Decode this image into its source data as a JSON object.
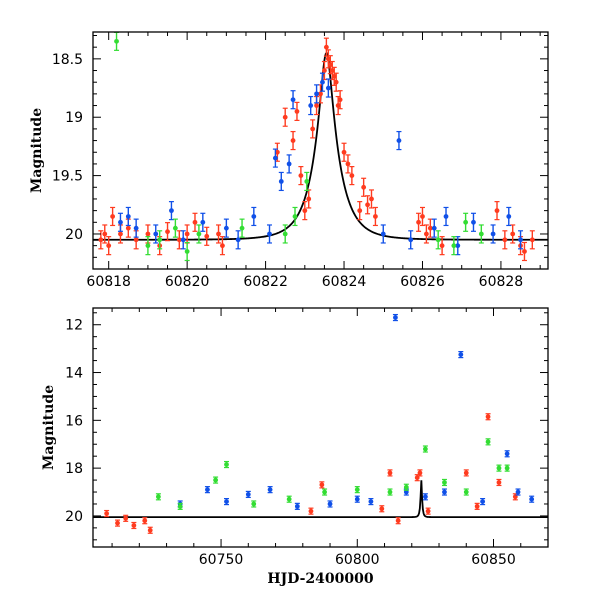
{
  "colors": {
    "red": "#ff3b1f",
    "blue": "#1050e8",
    "green": "#33dd33",
    "model": "#000000"
  },
  "chart_data": [
    {
      "type": "scatter",
      "title": "",
      "xlabel": "",
      "ylabel": "Magnitude",
      "xlim": [
        60817.6,
        60829.2
      ],
      "ylim": [
        20.3,
        18.27
      ],
      "y_inverted": true,
      "x_ticks": [
        60818,
        60820,
        60822,
        60824,
        60826,
        60828
      ],
      "x_tick_labels": [
        "60818",
        "60820",
        "60822",
        "60824",
        "60826",
        "60828"
      ],
      "y_ticks": [
        18.5,
        19,
        19.5,
        20
      ],
      "y_tick_labels": [
        "18.5",
        "19",
        "19.5",
        "20"
      ],
      "model_curve": {
        "type": "line",
        "peak_x": 60823.55,
        "peak_y": 18.45,
        "baseline_y": 20.05
      },
      "series": [
        {
          "color": "red",
          "x": [
            60817.8,
            60817.9,
            60818.0,
            60818.1,
            60818.3,
            60818.5,
            60818.7,
            60819.0,
            60819.3,
            60819.5,
            60819.8,
            60820.0,
            60820.2,
            60820.5,
            60820.8,
            60820.9,
            60822.3,
            60822.5,
            60822.7,
            60822.8,
            60822.9,
            60823.0,
            60823.1,
            60823.2,
            60823.3,
            60823.4,
            60823.5,
            60823.55,
            60823.6,
            60823.65,
            60823.7,
            60823.75,
            60823.8,
            60823.85,
            60823.9,
            60824.0,
            60824.1,
            60824.2,
            60824.4,
            60824.5,
            60824.6,
            60824.7,
            60824.8,
            60825.9,
            60826.0,
            60826.1,
            60826.2,
            60826.5,
            60827.9,
            60828.1,
            60828.3,
            60828.5,
            60828.6,
            60828.8
          ],
          "y": [
            20.05,
            20.0,
            20.1,
            19.85,
            20.0,
            19.95,
            20.05,
            20.0,
            20.1,
            19.98,
            20.05,
            20.0,
            19.9,
            20.02,
            20.0,
            20.1,
            19.3,
            19.0,
            19.2,
            18.95,
            19.5,
            19.8,
            19.7,
            19.1,
            18.9,
            18.8,
            18.6,
            18.4,
            18.5,
            18.55,
            18.6,
            18.65,
            18.7,
            18.9,
            18.85,
            19.3,
            19.4,
            19.5,
            19.8,
            19.6,
            19.75,
            19.7,
            19.85,
            19.9,
            19.85,
            20.0,
            19.95,
            20.1,
            19.8,
            20.05,
            20.0,
            20.1,
            20.15,
            20.05
          ]
        },
        {
          "color": "blue",
          "x": [
            60818.3,
            60818.5,
            60818.7,
            60819.2,
            60819.6,
            60819.9,
            60820.4,
            60821.0,
            60821.3,
            60821.7,
            60822.1,
            60822.25,
            60822.4,
            60822.6,
            60822.7,
            60823.15,
            60823.3,
            60823.45,
            60823.6,
            60825.0,
            60825.4,
            60825.7,
            60826.3,
            60826.6,
            60826.9,
            60827.3,
            60827.8,
            60828.2,
            60828.5
          ],
          "y": [
            19.9,
            19.85,
            19.95,
            20.0,
            19.8,
            20.05,
            19.9,
            19.95,
            20.05,
            19.85,
            20.0,
            19.35,
            19.55,
            19.4,
            18.85,
            18.9,
            18.8,
            18.7,
            18.75,
            20.0,
            19.2,
            20.05,
            19.95,
            19.85,
            20.1,
            19.9,
            20.0,
            19.85,
            20.05
          ]
        },
        {
          "color": "green",
          "x": [
            60818.2,
            60819.0,
            60819.3,
            60819.7,
            60820.0,
            60820.3,
            60821.4,
            60822.5,
            60822.75,
            60823.05,
            60826.4,
            60826.8,
            60827.1,
            60827.5
          ],
          "y": [
            18.35,
            20.1,
            20.05,
            19.95,
            20.15,
            20.0,
            19.95,
            20.0,
            19.85,
            19.55,
            20.05,
            20.1,
            19.9,
            20.0
          ]
        }
      ]
    },
    {
      "type": "scatter",
      "title": "",
      "xlabel": "HJD-2400000",
      "ylabel": "Magnitude",
      "xlim": [
        60703,
        60870
      ],
      "ylim": [
        21.3,
        11.3
      ],
      "y_inverted": true,
      "x_ticks": [
        60750,
        60800,
        60850
      ],
      "x_tick_labels": [
        "60750",
        "60800",
        "60850"
      ],
      "y_ticks": [
        12,
        14,
        16,
        18,
        20
      ],
      "y_tick_labels": [
        "12",
        "14",
        "16",
        "18",
        "20"
      ],
      "model_curve": {
        "type": "line",
        "peak_x": 60823.5,
        "peak_y": 18.5,
        "baseline_y": 20.05
      },
      "series": [
        {
          "color": "red",
          "x": [
            60708,
            60712,
            60715,
            60718,
            60722,
            60724,
            60783,
            60787,
            60809,
            60812,
            60815,
            60822,
            60823,
            60826,
            60840,
            60844,
            60848,
            60852,
            60858
          ],
          "y": [
            19.9,
            20.3,
            20.1,
            20.4,
            20.2,
            20.6,
            19.8,
            18.7,
            19.7,
            18.2,
            20.2,
            18.4,
            18.2,
            19.8,
            18.2,
            19.6,
            15.85,
            18.6,
            19.2
          ]
        },
        {
          "color": "blue",
          "x": [
            60735,
            60745,
            60752,
            60760,
            60768,
            60778,
            60790,
            60800,
            60805,
            60814,
            60818,
            60825,
            60832,
            60838,
            60846,
            60855,
            60859,
            60864
          ],
          "y": [
            19.5,
            18.9,
            19.4,
            19.1,
            18.9,
            19.6,
            19.5,
            19.3,
            19.4,
            11.7,
            19.0,
            19.2,
            19.0,
            13.25,
            19.4,
            17.4,
            19.0,
            19.3
          ]
        },
        {
          "color": "green",
          "x": [
            60727,
            60735,
            60748,
            60752,
            60762,
            60775,
            60788,
            60800,
            60812,
            60818,
            60825,
            60832,
            60840,
            60848,
            60852,
            60855
          ],
          "y": [
            19.2,
            19.6,
            18.5,
            17.85,
            19.5,
            19.3,
            19.0,
            18.9,
            19.0,
            18.8,
            17.2,
            18.6,
            19.0,
            16.9,
            18.0,
            18.0
          ]
        }
      ]
    }
  ]
}
